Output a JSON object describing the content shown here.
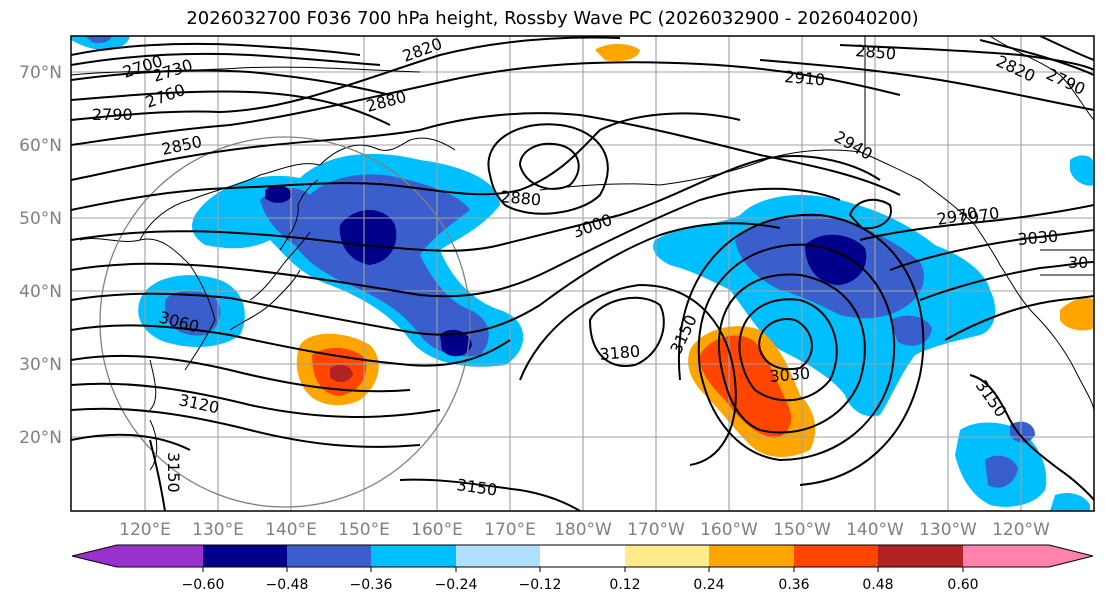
{
  "title": "2026032700 F036 700 hPa height, Rossby Wave PC (2026032900 - 2026040200)",
  "map": {
    "lon_ticks": [
      "120°E",
      "130°E",
      "140°E",
      "150°E",
      "160°E",
      "170°E",
      "180°W",
      "170°W",
      "160°W",
      "150°W",
      "140°W",
      "130°W",
      "120°W"
    ],
    "lat_ticks": [
      "70°N",
      "60°N",
      "50°N",
      "40°N",
      "30°N",
      "20°N"
    ],
    "contour_labels": [
      "2700",
      "2730",
      "2760",
      "2790",
      "2820",
      "2850",
      "2880",
      "2910",
      "2940",
      "2970",
      "3000",
      "3030",
      "3060",
      "3120",
      "3150",
      "3180",
      "2850",
      "2880",
      "2970",
      "3030",
      "3150",
      "3150",
      "3150",
      "2820",
      "2790",
      "30"
    ]
  },
  "colorbar": {
    "ticks": [
      "−0.60",
      "−0.48",
      "−0.36",
      "−0.24",
      "−0.12",
      "0.12",
      "0.24",
      "0.36",
      "0.48",
      "0.60"
    ],
    "colors": [
      "#9932cc",
      "#00008b",
      "#3a5fcd",
      "#00bfff",
      "#b0e0ff",
      "#ffffff",
      "#ffeb8a",
      "#ffa500",
      "#ff4500",
      "#b22222",
      "#ff82ab"
    ]
  }
}
